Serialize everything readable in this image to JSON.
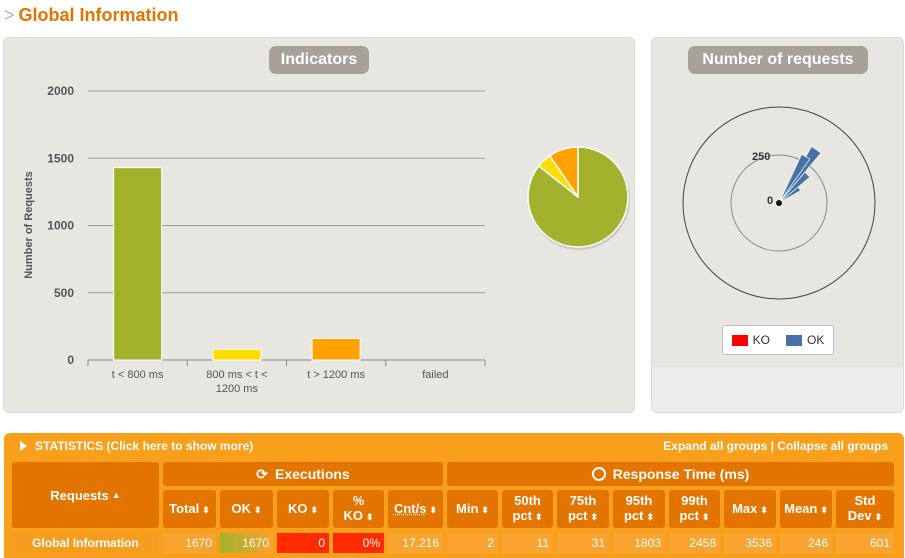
{
  "section": {
    "prefix": ">",
    "title": "Global Information"
  },
  "indicators": {
    "title": "Indicators",
    "y_axis_label": "Number of Requests",
    "y_ticks": [
      "0",
      "500",
      "1000",
      "1500",
      "2000"
    ],
    "categories": [
      [
        "t < 800 ms"
      ],
      [
        "800 ms < t <",
        "1200 ms"
      ],
      [
        "t > 1200 ms"
      ],
      [
        "failed"
      ]
    ],
    "pie": [
      {
        "label": "t < 800 ms",
        "value": 1430,
        "color": "#a2b22c"
      },
      {
        "label": "800 ms < t < 1200 ms",
        "value": 80,
        "color": "#ffdd00"
      },
      {
        "label": "t > 1200 ms",
        "value": 160,
        "color": "#ffa100"
      },
      {
        "label": "failed",
        "value": 0,
        "color": "#ff0000"
      }
    ]
  },
  "chart_data": [
    {
      "type": "bar",
      "categories": [
        "t < 800 ms",
        "800 ms < t < 1200 ms",
        "t > 1200 ms",
        "failed"
      ],
      "values": [
        1430,
        80,
        160,
        0
      ],
      "colors": [
        "#a2b22c",
        "#ffdd00",
        "#ffa100",
        "#ff0000"
      ],
      "ylabel": "Number of Requests",
      "ylim": [
        0,
        2000
      ],
      "grid": true
    },
    {
      "type": "pie",
      "categories": [
        "t < 800 ms",
        "800 ms < t < 1200 ms",
        "t > 1200 ms",
        "failed"
      ],
      "values": [
        1430,
        80,
        160,
        0
      ]
    }
  ],
  "requests_chart": {
    "title": "Number of requests",
    "ring_labels": [
      "0",
      "250"
    ],
    "legend": [
      {
        "label": "KO",
        "color": "#ff0000"
      },
      {
        "label": "OK",
        "color": "#4572a7"
      }
    ],
    "ok_rays": [
      {
        "angle_deg": 35,
        "value": 340
      },
      {
        "angle_deg": 45,
        "value": 210
      },
      {
        "angle_deg": 55,
        "value": 130
      },
      {
        "angle_deg": 30,
        "value": 280
      }
    ]
  },
  "statistics": {
    "header_left": "STATISTICS (Click here to show more)",
    "header_right": "Expand all groups | Collapse all groups",
    "requests_label": "Requests",
    "executions_label": "Executions",
    "response_time_label": "Response Time (ms)",
    "columns": [
      [
        "Total"
      ],
      [
        "OK"
      ],
      [
        "KO"
      ],
      [
        "%",
        "KO"
      ],
      [
        "Cnt/s"
      ],
      [
        "Min"
      ],
      [
        "50th",
        "pct"
      ],
      [
        "75th",
        "pct"
      ],
      [
        "95th",
        "pct"
      ],
      [
        "99th",
        "pct"
      ],
      [
        "Max"
      ],
      [
        "Mean"
      ],
      [
        "Std",
        "Dev"
      ]
    ],
    "row": {
      "name": "Global Information",
      "values": [
        "1670",
        "1670",
        "0",
        "0%",
        "17.216",
        "2",
        "11",
        "31",
        "1803",
        "2458",
        "3536",
        "246",
        "601"
      ]
    },
    "colors": {
      "header_bg": "#f89f1b",
      "cell_bg": "#e37400",
      "ok_bg": "#a2b22c",
      "ko_bg": "#ff2a00"
    }
  }
}
